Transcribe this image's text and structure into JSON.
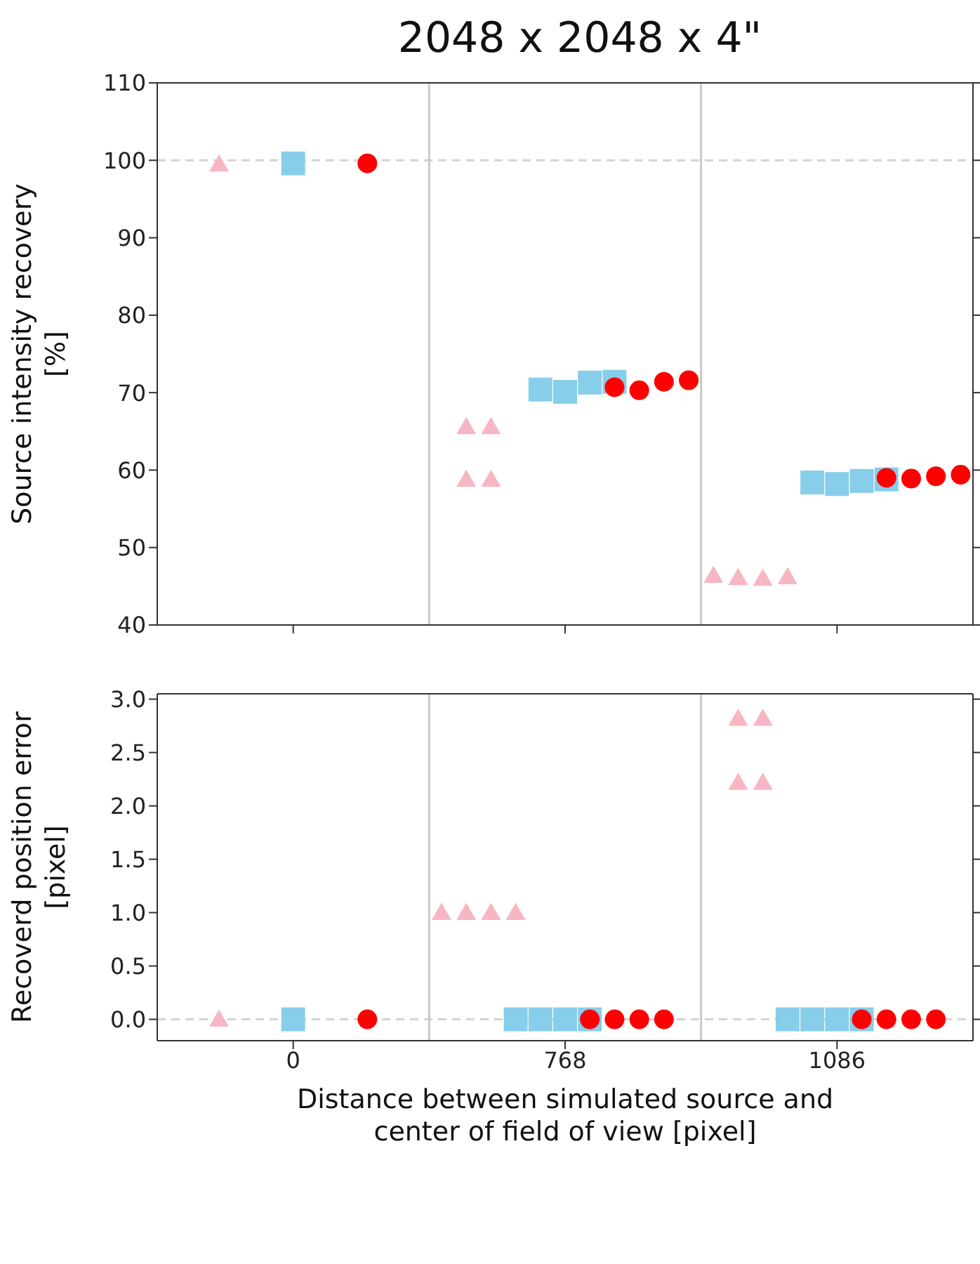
{
  "chart_data": [
    {
      "type": "scatter",
      "title": "2048 x 2048 x 4\"",
      "ylabel": "Source intensity recovery [%]",
      "categories": [
        null,
        null,
        null,
        null,
        null,
        "0",
        null,
        null,
        null,
        null,
        null,
        null,
        null,
        null,
        null,
        null,
        "768",
        null,
        null,
        null,
        null,
        null,
        null,
        null,
        null,
        null,
        null,
        "1086",
        null,
        null,
        null,
        null,
        null
      ],
      "ylim": [
        40,
        110
      ],
      "yticks": [
        40,
        50,
        60,
        70,
        80,
        90,
        100,
        110
      ],
      "tick_labels": "y",
      "grid": false,
      "ref_lines": [
        {
          "axis": "y",
          "value": 100,
          "color": "#d3d3d3",
          "line_style": "dashed"
        }
      ],
      "series": [
        {
          "color": "#f7b6c4",
          "marker": "triangle",
          "values": [
            null,
            null,
            99.5,
            null,
            null,
            null,
            null,
            null,
            null,
            null,
            null,
            null,
            65.6,
            65.6,
            null,
            null,
            null,
            null,
            null,
            null,
            null,
            null,
            46.4,
            46.1,
            46.0,
            46.2,
            null,
            null,
            null,
            null,
            null,
            null,
            null
          ]
        },
        {
          "color": "#f7b6c4",
          "marker": "triangle",
          "values": [
            null,
            null,
            null,
            null,
            null,
            null,
            null,
            null,
            null,
            null,
            null,
            null,
            58.8,
            58.8,
            null,
            null,
            null,
            null,
            null,
            null,
            null,
            null,
            null,
            null,
            null,
            null,
            null,
            null,
            null,
            null,
            null,
            null,
            null
          ]
        },
        {
          "color": "#87ceeb",
          "marker": "square",
          "values": [
            null,
            null,
            null,
            null,
            null,
            99.6,
            null,
            null,
            null,
            null,
            null,
            null,
            null,
            null,
            null,
            70.4,
            70.1,
            71.3,
            71.4,
            null,
            null,
            null,
            null,
            null,
            null,
            null,
            58.4,
            58.2,
            58.6,
            58.8,
            null,
            null,
            null
          ]
        },
        {
          "color": "#ff0000",
          "marker": "circle",
          "values": [
            null,
            null,
            null,
            null,
            null,
            null,
            null,
            null,
            99.6,
            null,
            null,
            null,
            null,
            null,
            null,
            null,
            null,
            null,
            70.7,
            70.3,
            71.4,
            71.6,
            null,
            null,
            null,
            null,
            null,
            null,
            null,
            59.0,
            58.9,
            59.2,
            59.4
          ]
        }
      ]
    },
    {
      "type": "scatter",
      "xlabel": "Distance between simulated source and center of field of view [pixel]",
      "ylabel": "Recoverd position error [pixel]",
      "categories": [
        null,
        null,
        null,
        null,
        null,
        "0",
        null,
        null,
        null,
        null,
        null,
        null,
        null,
        null,
        null,
        null,
        "768",
        null,
        null,
        null,
        null,
        null,
        null,
        null,
        null,
        null,
        null,
        "1086",
        null,
        null,
        null,
        null,
        null
      ],
      "ylim": [
        -0.2,
        3.05
      ],
      "yticks": [
        {
          "value": 0,
          "label": "0.0"
        },
        {
          "value": 0.5,
          "label": "0.5"
        },
        {
          "value": 1,
          "label": "1.0"
        },
        {
          "value": 1.5,
          "label": "1.5"
        },
        {
          "value": 2,
          "label": "2.0"
        },
        {
          "value": 2.5,
          "label": "2.5"
        },
        {
          "value": 3,
          "label": "3.0"
        }
      ],
      "grid": false,
      "ref_lines": [
        {
          "axis": "y",
          "value": 0,
          "color": "#d3d3d3",
          "line_style": "dashed"
        }
      ],
      "series": [
        {
          "color": "#f7b6c4",
          "marker": "triangle",
          "values": [
            null,
            null,
            0,
            null,
            null,
            null,
            null,
            null,
            null,
            null,
            null,
            1.0,
            1.0,
            1.0,
            1.0,
            null,
            null,
            null,
            null,
            null,
            null,
            null,
            null,
            2.82,
            2.82,
            null,
            null,
            null,
            null,
            null,
            null,
            null,
            null
          ]
        },
        {
          "color": "#f7b6c4",
          "marker": "triangle",
          "values": [
            null,
            null,
            null,
            null,
            null,
            null,
            null,
            null,
            null,
            null,
            null,
            null,
            null,
            null,
            null,
            null,
            null,
            null,
            null,
            null,
            null,
            null,
            null,
            2.22,
            2.22,
            null,
            null,
            null,
            null,
            null,
            null,
            null,
            null
          ]
        },
        {
          "color": "#87ceeb",
          "marker": "square",
          "values": [
            null,
            null,
            null,
            null,
            null,
            0,
            null,
            null,
            null,
            null,
            null,
            null,
            null,
            null,
            0,
            0,
            0,
            0,
            null,
            null,
            null,
            null,
            null,
            null,
            null,
            0,
            0,
            0,
            0,
            null,
            null,
            null,
            null
          ]
        },
        {
          "color": "#ff0000",
          "marker": "circle",
          "values": [
            null,
            null,
            null,
            null,
            null,
            null,
            null,
            null,
            0,
            null,
            null,
            null,
            null,
            null,
            null,
            null,
            null,
            0,
            0,
            0,
            0,
            null,
            null,
            null,
            null,
            null,
            null,
            null,
            0,
            0,
            0,
            0,
            null
          ]
        }
      ]
    }
  ]
}
